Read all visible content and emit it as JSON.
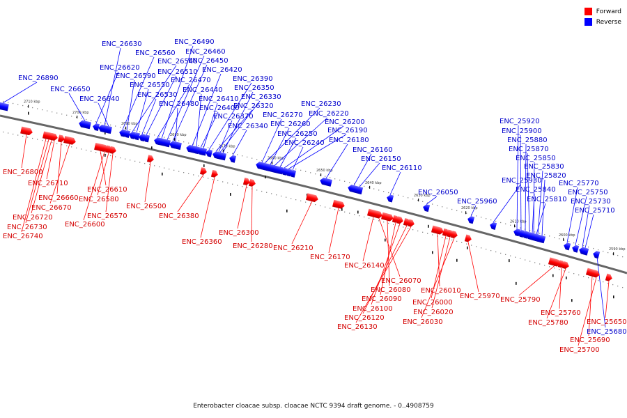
{
  "legend": {
    "forward_label": "Forward",
    "reverse_label": "Reverse",
    "forward_color": "#ff0000",
    "reverse_color": "#0000ff"
  },
  "caption": "Enterobacter cloacae subsp. cloacae NCTC 9394 draft genome. - 0..4908759",
  "axis_ticks": [
    "2710 kbp",
    "2700 kbp",
    "2690 kbp",
    "2680 kbp",
    "2670 kbp",
    "2660 kbp",
    "2650 kbp",
    "2640 kbp",
    "2630 kbp",
    "2620 kbp",
    "2610 kbp",
    "2600 kbp",
    "2590 kbp"
  ],
  "forward_genes": [
    "ENC_26800",
    "ENC_26710",
    "ENC_26660",
    "ENC_26670",
    "ENC_26720",
    "ENC_26730",
    "ENC_26740",
    "ENC_26610",
    "ENC_26580",
    "ENC_26600",
    "ENC_26570",
    "ENC_26500",
    "ENC_26380",
    "ENC_26360",
    "ENC_26300",
    "ENC_26280",
    "ENC_26210",
    "ENC_26170",
    "ENC_26140",
    "ENC_26070",
    "ENC_26080",
    "ENC_26090",
    "ENC_26100",
    "ENC_26120",
    "ENC_26130",
    "ENC_26010",
    "ENC_26000",
    "ENC_26020",
    "ENC_26030",
    "ENC_25970",
    "ENC_25790",
    "ENC_25760",
    "ENC_25780",
    "ENC_25650",
    "ENC_25690",
    "ENC_25700"
  ],
  "reverse_genes": [
    "ENC_26890",
    "ENC_26650",
    "ENC_26630",
    "ENC_26620",
    "ENC_26640",
    "ENC_26560",
    "ENC_26590",
    "ENC_26540",
    "ENC_26550",
    "ENC_26510",
    "ENC_26530",
    "ENC_26490",
    "ENC_26460",
    "ENC_26450",
    "ENC_26470",
    "ENC_26420",
    "ENC_26440",
    "ENC_26480",
    "ENC_26390",
    "ENC_26410",
    "ENC_26400",
    "ENC_26350",
    "ENC_26330",
    "ENC_26320",
    "ENC_26370",
    "ENC_26340",
    "ENC_26230",
    "ENC_26270",
    "ENC_26220",
    "ENC_26260",
    "ENC_26200",
    "ENC_26250",
    "ENC_26190",
    "ENC_26240",
    "ENC_26180",
    "ENC_26160",
    "ENC_26150",
    "ENC_26110",
    "ENC_26050",
    "ENC_25960",
    "ENC_25920",
    "ENC_25900",
    "ENC_25880",
    "ENC_25870",
    "ENC_25850",
    "ENC_25830",
    "ENC_25930",
    "ENC_25820",
    "ENC_25840",
    "ENC_25810",
    "ENC_25770",
    "ENC_25750",
    "ENC_25730",
    "ENC_25710",
    "ENC_25680"
  ]
}
